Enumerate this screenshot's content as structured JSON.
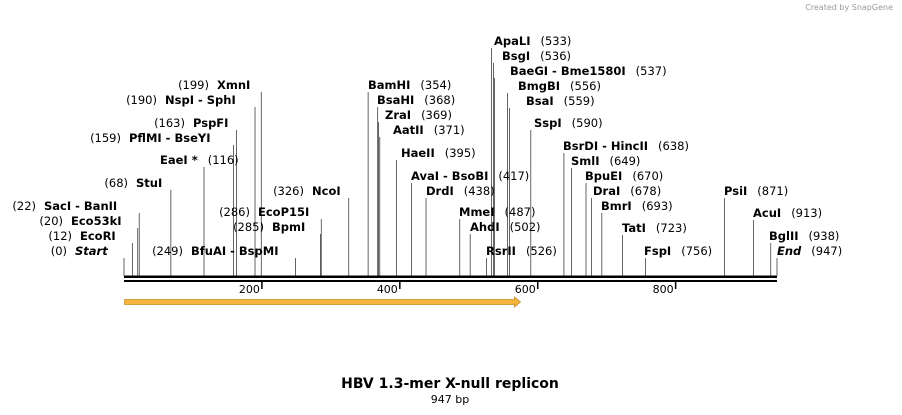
{
  "credit": "Created by SnapGene",
  "title": "HBV 1.3-mer X-null replicon",
  "length_label": "947 bp",
  "sequence_length": 947,
  "colors": {
    "feature": "#f5b43c",
    "feature_stroke": "#c48a20",
    "line": "#000000"
  },
  "axis": {
    "ticks": [
      200,
      400,
      600,
      800
    ]
  },
  "feature": {
    "name": "feature-arrow",
    "start": 1,
    "end": 575
  },
  "sites": [
    {
      "name": "Start",
      "pos": 0,
      "italic": true
    },
    {
      "name": "EcoRI",
      "pos": 12
    },
    {
      "name": "Eco53kI",
      "pos": 20
    },
    {
      "name": "SacI - BanII",
      "pos": 22
    },
    {
      "name": "StuI",
      "pos": 68
    },
    {
      "name": "EaeI *",
      "pos": 116,
      "posRight": true
    },
    {
      "name": "PflMI - BseYI",
      "pos": 159
    },
    {
      "name": "PspFI",
      "pos": 163
    },
    {
      "name": "NspI - SphI",
      "pos": 190
    },
    {
      "name": "XmnI",
      "pos": 199
    },
    {
      "name": "BfuAI - BspMI",
      "pos": 249
    },
    {
      "name": "BpmI",
      "pos": 285
    },
    {
      "name": "EcoP15I",
      "pos": 286
    },
    {
      "name": "NcoI",
      "pos": 326
    },
    {
      "name": "BamHI",
      "pos": 354
    },
    {
      "name": "BsaHI",
      "pos": 368
    },
    {
      "name": "ZraI",
      "pos": 369
    },
    {
      "name": "AatII",
      "pos": 371
    },
    {
      "name": "HaeII",
      "pos": 395
    },
    {
      "name": "AvaI - BsoBI",
      "pos": 417
    },
    {
      "name": "DrdI",
      "pos": 438
    },
    {
      "name": "MmeI",
      "pos": 487
    },
    {
      "name": "AhdI",
      "pos": 502
    },
    {
      "name": "RsrII",
      "pos": 526
    },
    {
      "name": "ApaLI",
      "pos": 533
    },
    {
      "name": "BsgI",
      "pos": 536
    },
    {
      "name": "BaeGI - Bme1580I",
      "pos": 537
    },
    {
      "name": "BmgBI",
      "pos": 556
    },
    {
      "name": "BsaI",
      "pos": 559
    },
    {
      "name": "SspI",
      "pos": 590
    },
    {
      "name": "BsrDI - HincII",
      "pos": 638
    },
    {
      "name": "SmlI",
      "pos": 649
    },
    {
      "name": "BpuEI",
      "pos": 670
    },
    {
      "name": "DraI",
      "pos": 678
    },
    {
      "name": "BmrI",
      "pos": 693
    },
    {
      "name": "TatI",
      "pos": 723
    },
    {
      "name": "FspI",
      "pos": 756
    },
    {
      "name": "PsiI",
      "pos": 871
    },
    {
      "name": "AcuI",
      "pos": 913
    },
    {
      "name": "BglII",
      "pos": 938
    },
    {
      "name": "End",
      "pos": 947,
      "italic": true
    }
  ]
}
